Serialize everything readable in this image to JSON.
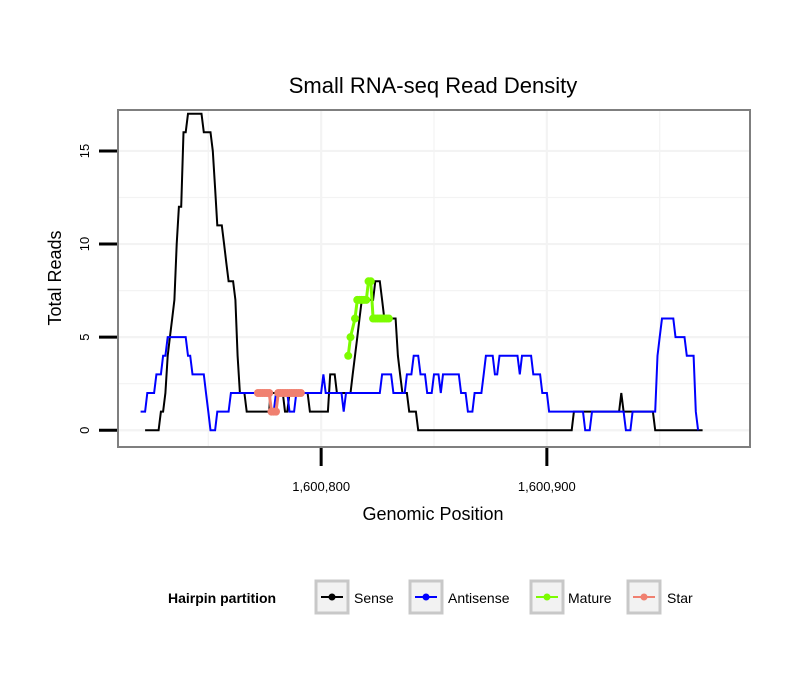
{
  "chart_data": {
    "type": "line",
    "title": "Small RNA-seq Read Density",
    "xlabel": "Genomic Position",
    "ylabel": "Total Reads",
    "xlim": [
      1600710,
      1600990
    ],
    "ylim": [
      -0.9,
      17.2
    ],
    "x_ticks": [
      1600800,
      1600900
    ],
    "x_tick_labels": [
      "1,600,800",
      "1,600,900"
    ],
    "y_ticks": [
      0,
      5,
      10,
      15
    ],
    "y_tick_labels": [
      "0",
      "5",
      "10",
      "15"
    ],
    "grid": true,
    "legend": {
      "title": "Hairpin partition",
      "placement": "bottom",
      "entries": [
        {
          "name": "Sense",
          "color": "#000000"
        },
        {
          "name": "Antisense",
          "color": "#0000ff"
        },
        {
          "name": "Mature",
          "color": "#7cfc00"
        },
        {
          "name": "Star",
          "color": "#f08070"
        }
      ]
    },
    "series": [
      {
        "name": "Sense",
        "color": "#000000",
        "points": [
          [
            1600722,
            0
          ],
          [
            1600728,
            0
          ],
          [
            1600729,
            1
          ],
          [
            1600730,
            1
          ],
          [
            1600731,
            2
          ],
          [
            1600732,
            4
          ],
          [
            1600733,
            5
          ],
          [
            1600734,
            6
          ],
          [
            1600735,
            7
          ],
          [
            1600736,
            10
          ],
          [
            1600737,
            12
          ],
          [
            1600738,
            12
          ],
          [
            1600739,
            16
          ],
          [
            1600740,
            16
          ],
          [
            1600741,
            17
          ],
          [
            1600747,
            17
          ],
          [
            1600748,
            16
          ],
          [
            1600751,
            16
          ],
          [
            1600752,
            15
          ],
          [
            1600753,
            13
          ],
          [
            1600754,
            11
          ],
          [
            1600756,
            11
          ],
          [
            1600757,
            10
          ],
          [
            1600758,
            9
          ],
          [
            1600759,
            8
          ],
          [
            1600761,
            8
          ],
          [
            1600762,
            7
          ],
          [
            1600763,
            4
          ],
          [
            1600764,
            2
          ],
          [
            1600766,
            2
          ],
          [
            1600767,
            1
          ],
          [
            1600777,
            1
          ],
          [
            1600777.5,
            2
          ],
          [
            1600783,
            2
          ],
          [
            1600784,
            1
          ],
          [
            1600785,
            1
          ],
          [
            1600786,
            2
          ],
          [
            1600794,
            2
          ],
          [
            1600795,
            1
          ],
          [
            1600803,
            1
          ],
          [
            1600804,
            3
          ],
          [
            1600806,
            3
          ],
          [
            1600807,
            2
          ],
          [
            1600809,
            2
          ],
          [
            1600813,
            2
          ],
          [
            1600814,
            3
          ],
          [
            1600815,
            4
          ],
          [
            1600816,
            5
          ],
          [
            1600817,
            6
          ],
          [
            1600818,
            7
          ],
          [
            1600823,
            7
          ],
          [
            1600824,
            8
          ],
          [
            1600826,
            8
          ],
          [
            1600827,
            7
          ],
          [
            1600828,
            6
          ],
          [
            1600833,
            6
          ],
          [
            1600834,
            4
          ],
          [
            1600835,
            3
          ],
          [
            1600836,
            2
          ],
          [
            1600838,
            2
          ],
          [
            1600839,
            1
          ],
          [
            1600842,
            1
          ],
          [
            1600843,
            0
          ],
          [
            1600895,
            0
          ],
          [
            1600911,
            0
          ],
          [
            1600912,
            1
          ],
          [
            1600932,
            1
          ],
          [
            1600933,
            2
          ],
          [
            1600934,
            1
          ],
          [
            1600947,
            1
          ],
          [
            1600948,
            0
          ],
          [
            1600969,
            0
          ]
        ]
      },
      {
        "name": "Antisense",
        "color": "#0000ff",
        "points": [
          [
            1600720,
            1
          ],
          [
            1600722,
            1
          ],
          [
            1600723,
            2
          ],
          [
            1600726,
            2
          ],
          [
            1600727,
            3
          ],
          [
            1600729,
            3
          ],
          [
            1600730,
            4
          ],
          [
            1600731,
            4
          ],
          [
            1600732,
            5
          ],
          [
            1600740,
            5
          ],
          [
            1600741,
            4
          ],
          [
            1600742,
            4
          ],
          [
            1600743,
            3
          ],
          [
            1600748,
            3
          ],
          [
            1600749,
            2
          ],
          [
            1600750,
            1
          ],
          [
            1600751,
            0
          ],
          [
            1600753,
            0
          ],
          [
            1600754,
            1
          ],
          [
            1600759,
            1
          ],
          [
            1600760,
            2
          ],
          [
            1600765,
            2
          ],
          [
            1600767,
            2
          ],
          [
            1600777,
            2
          ],
          [
            1600778,
            1
          ],
          [
            1600779,
            1
          ],
          [
            1600780,
            2
          ],
          [
            1600785,
            2
          ],
          [
            1600786,
            1
          ],
          [
            1600788,
            1
          ],
          [
            1600789,
            2
          ],
          [
            1600800,
            2
          ],
          [
            1600801,
            3
          ],
          [
            1600802,
            2
          ],
          [
            1600809,
            2
          ],
          [
            1600810,
            1
          ],
          [
            1600811,
            2
          ],
          [
            1600826,
            2
          ],
          [
            1600827,
            3
          ],
          [
            1600831,
            3
          ],
          [
            1600832,
            2
          ],
          [
            1600837,
            2
          ],
          [
            1600838,
            3
          ],
          [
            1600840,
            3
          ],
          [
            1600841,
            4
          ],
          [
            1600843,
            4
          ],
          [
            1600844,
            3
          ],
          [
            1600846,
            3
          ],
          [
            1600847,
            2
          ],
          [
            1600849,
            2
          ],
          [
            1600850,
            3
          ],
          [
            1600852,
            3
          ],
          [
            1600853,
            2
          ],
          [
            1600854,
            3
          ],
          [
            1600861,
            3
          ],
          [
            1600862,
            2
          ],
          [
            1600864,
            2
          ],
          [
            1600865,
            1
          ],
          [
            1600867,
            1
          ],
          [
            1600868,
            2
          ],
          [
            1600871,
            2
          ],
          [
            1600872,
            3
          ],
          [
            1600873,
            4
          ],
          [
            1600876,
            4
          ],
          [
            1600877,
            3
          ],
          [
            1600878,
            3
          ],
          [
            1600879,
            4
          ],
          [
            1600887,
            4
          ],
          [
            1600888,
            3
          ],
          [
            1600889,
            4
          ],
          [
            1600893,
            4
          ],
          [
            1600894,
            3
          ],
          [
            1600897,
            3
          ],
          [
            1600898,
            2
          ],
          [
            1600900,
            2
          ],
          [
            1600901,
            1
          ],
          [
            1600916,
            1
          ],
          [
            1600917,
            0
          ],
          [
            1600919,
            0
          ],
          [
            1600920,
            1
          ],
          [
            1600934,
            1
          ],
          [
            1600935,
            0
          ],
          [
            1600937,
            0
          ],
          [
            1600938,
            1
          ],
          [
            1600948,
            1
          ],
          [
            1600949,
            4
          ],
          [
            1600950,
            5
          ],
          [
            1600951,
            6
          ],
          [
            1600956,
            6
          ],
          [
            1600957,
            5
          ],
          [
            1600961,
            5
          ],
          [
            1600962,
            4
          ],
          [
            1600965,
            4
          ],
          [
            1600966,
            1
          ],
          [
            1600967,
            0
          ]
        ]
      },
      {
        "name": "Mature",
        "color": "#7cfc00",
        "points": [
          [
            1600812,
            4
          ],
          [
            1600813,
            5
          ],
          [
            1600815,
            6
          ],
          [
            1600816,
            7
          ],
          [
            1600817,
            7
          ],
          [
            1600818,
            7
          ],
          [
            1600819,
            7
          ],
          [
            1600820,
            7
          ],
          [
            1600821,
            8
          ],
          [
            1600822,
            8
          ],
          [
            1600823,
            6
          ],
          [
            1600824,
            6
          ],
          [
            1600825,
            6
          ],
          [
            1600826,
            6
          ],
          [
            1600827,
            6
          ],
          [
            1600828,
            6
          ],
          [
            1600829,
            6
          ],
          [
            1600830,
            6
          ]
        ]
      },
      {
        "name": "Star",
        "color": "#f08070",
        "points": [
          [
            1600772,
            2
          ],
          [
            1600773,
            2
          ],
          [
            1600774,
            2
          ],
          [
            1600775,
            2
          ],
          [
            1600776,
            2
          ],
          [
            1600777,
            2
          ],
          [
            1600778,
            1
          ],
          [
            1600779,
            1
          ],
          [
            1600780,
            1
          ],
          [
            1600781,
            2
          ],
          [
            1600782,
            2
          ],
          [
            1600783,
            2
          ],
          [
            1600784,
            2
          ],
          [
            1600785,
            2
          ],
          [
            1600786,
            2
          ],
          [
            1600787,
            2
          ],
          [
            1600788,
            2
          ],
          [
            1600789,
            2
          ],
          [
            1600790,
            2
          ],
          [
            1600791,
            2
          ]
        ]
      }
    ]
  }
}
